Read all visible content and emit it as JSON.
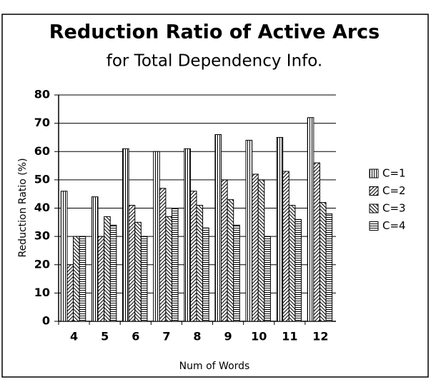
{
  "chart_data": {
    "type": "bar",
    "title": "Reduction Ratio of Active Arcs",
    "subtitle": "for Total Dependency Info.",
    "x_label": "Num of Words",
    "y_label": "Reduction Ratio (%)",
    "categories": [
      "4",
      "5",
      "6",
      "7",
      "8",
      "9",
      "10",
      "11",
      "12"
    ],
    "series": [
      {
        "name": "C=1",
        "color": "#000000",
        "pattern": "vertical",
        "values": [
          46,
          44,
          61,
          60,
          61,
          66,
          64,
          65,
          72
        ]
      },
      {
        "name": "C=2",
        "color": "#000000",
        "pattern": "diagonal-up",
        "values": [
          20,
          30,
          41,
          47,
          46,
          50,
          52,
          53,
          56
        ]
      },
      {
        "name": "C=3",
        "color": "#000000",
        "pattern": "diagonal-down",
        "values": [
          30,
          37,
          35,
          37,
          41,
          43,
          50,
          41,
          42
        ]
      },
      {
        "name": "C=4",
        "color": "#000000",
        "pattern": "horizontal",
        "values": [
          30,
          34,
          30,
          40,
          33,
          34,
          30,
          36,
          38
        ]
      }
    ],
    "ylim": [
      0,
      80
    ],
    "yticks": [
      0,
      10,
      20,
      30,
      40,
      50,
      60,
      70,
      80
    ],
    "grid": true,
    "legend": "right"
  }
}
